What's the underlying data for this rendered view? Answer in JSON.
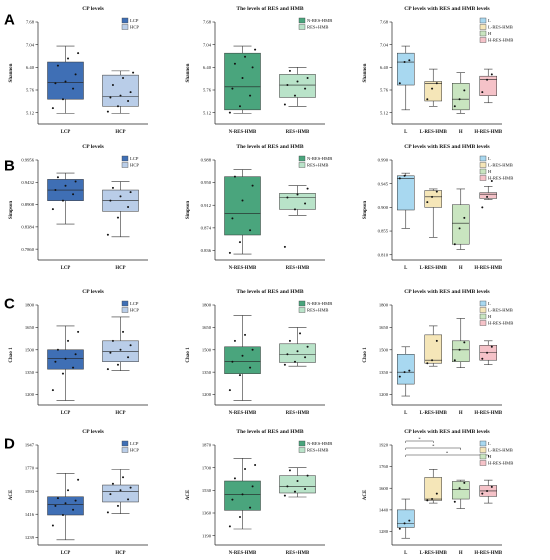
{
  "chart_data": [
    {
      "type": "box",
      "row": "A",
      "title": "CP levels",
      "ylabel": "Shannon",
      "ylim": [
        4.8,
        7.68
      ],
      "yticks": [
        "5.12",
        "5.76",
        "6.40",
        "7.04",
        "7.68"
      ],
      "categories": [
        "LCP",
        "HCP"
      ],
      "legend": [
        {
          "name": "LCP",
          "color": "#3f6fb5"
        },
        {
          "name": "HCP",
          "color": "#b9cde8"
        }
      ],
      "boxes": [
        {
          "name": "LCP",
          "color": "#3f6fb5",
          "min": 5.1,
          "q1": 5.5,
          "median": 5.97,
          "q3": 6.55,
          "max": 7.0,
          "points": [
            5.25,
            5.5,
            5.8,
            5.95,
            6.0,
            6.2,
            6.45,
            6.65,
            6.8
          ]
        },
        {
          "name": "HCP",
          "color": "#b9cde8",
          "min": 5.1,
          "q1": 5.3,
          "median": 5.58,
          "q3": 6.18,
          "max": 6.3,
          "points": [
            5.15,
            5.3,
            5.45,
            5.55,
            5.6,
            5.7,
            5.9,
            6.1,
            6.25
          ]
        }
      ],
      "sig": []
    },
    {
      "type": "box",
      "row": "A",
      "title": "The levels of RES and HMB",
      "ylabel": "Shannon",
      "ylim": [
        4.8,
        7.68
      ],
      "yticks": [
        "5.12",
        "5.76",
        "6.40",
        "7.04",
        "7.68"
      ],
      "categories": [
        "N-RES-HMB",
        "RES+HMB"
      ],
      "legend": [
        {
          "name": "N-RES-HMB",
          "color": "#4aa57d"
        },
        {
          "name": "RES+HMB",
          "color": "#b9e3c9"
        }
      ],
      "boxes": [
        {
          "name": "N-RES-HMB",
          "color": "#4aa57d",
          "min": 5.1,
          "q1": 5.2,
          "median": 5.85,
          "q3": 6.8,
          "max": 7.0,
          "points": [
            5.12,
            5.3,
            5.6,
            5.8,
            6.1,
            6.4,
            6.5,
            6.7,
            6.9
          ]
        },
        {
          "name": "RES+HMB",
          "color": "#b9e3c9",
          "min": 5.3,
          "q1": 5.55,
          "median": 5.9,
          "q3": 6.2,
          "max": 6.4,
          "points": [
            5.35,
            5.6,
            5.8,
            5.9,
            6.0,
            6.1,
            6.3
          ]
        }
      ],
      "sig": []
    },
    {
      "type": "box",
      "row": "A",
      "title": "CP levels with RES and HMB levels",
      "ylabel": "Shannon",
      "ylim": [
        4.8,
        7.68
      ],
      "yticks": [
        "5.12",
        "5.76",
        "6.40",
        "7.04",
        "7.68"
      ],
      "categories": [
        "L",
        "L-RES-HMB",
        "H",
        "H-RES-HMB"
      ],
      "legend": [
        {
          "name": "L",
          "color": "#a8d8f0"
        },
        {
          "name": "L-RES-HMB",
          "color": "#f5e6b8"
        },
        {
          "name": "H",
          "color": "#c9e5c0"
        },
        {
          "name": "H-RES-HMB",
          "color": "#f5c2c8"
        }
      ],
      "boxes": [
        {
          "name": "L",
          "color": "#a8d8f0",
          "min": 5.2,
          "q1": 5.9,
          "median": 6.55,
          "q3": 6.8,
          "max": 7.0,
          "points": [
            5.95,
            6.55,
            6.6
          ]
        },
        {
          "name": "L-RES-HMB",
          "color": "#f5e6b8",
          "min": 5.3,
          "q1": 5.45,
          "median": 5.95,
          "q3": 6.0,
          "max": 6.35,
          "points": [
            5.5,
            5.8,
            5.95
          ]
        },
        {
          "name": "H",
          "color": "#c9e5c0",
          "min": 5.1,
          "q1": 5.2,
          "median": 5.5,
          "q3": 5.95,
          "max": 6.25,
          "points": [
            5.3,
            5.5,
            5.75
          ]
        },
        {
          "name": "H-RES-HMB",
          "color": "#f5c2c8",
          "min": 5.4,
          "q1": 5.6,
          "median": 6.05,
          "q3": 6.15,
          "max": 6.35,
          "points": [
            5.7,
            6.05,
            6.2
          ]
        }
      ],
      "sig": []
    },
    {
      "type": "box",
      "row": "B",
      "title": "CP levels",
      "ylabel": "Simpson",
      "ylim": [
        0.7605,
        0.9956
      ],
      "yticks": [
        "0.7860",
        "0.8384",
        "0.8908",
        "0.9432",
        "0.9956"
      ],
      "categories": [
        "LCP",
        "HCP"
      ],
      "legend": [
        {
          "name": "LCP",
          "color": "#3f6fb5"
        },
        {
          "name": "HCP",
          "color": "#b9cde8"
        }
      ],
      "boxes": [
        {
          "name": "LCP",
          "color": "#3f6fb5",
          "min": 0.845,
          "q1": 0.9,
          "median": 0.925,
          "q3": 0.95,
          "max": 0.965,
          "points": [
            0.88,
            0.9,
            0.915,
            0.925,
            0.935,
            0.945,
            0.955
          ]
        },
        {
          "name": "HCP",
          "color": "#b9cde8",
          "min": 0.815,
          "q1": 0.875,
          "median": 0.9,
          "q3": 0.925,
          "max": 0.945,
          "points": [
            0.82,
            0.86,
            0.885,
            0.9,
            0.91,
            0.92,
            0.93
          ]
        }
      ],
      "sig": []
    },
    {
      "type": "box",
      "row": "B",
      "title": "The levels of RES and HMB",
      "ylabel": "Simpson",
      "ylim": [
        0.82,
        0.988
      ],
      "yticks": [
        "0.836",
        "0.874",
        "0.912",
        "0.950",
        "0.988"
      ],
      "categories": [
        "N-RES-HMB",
        "RES+HMB"
      ],
      "legend": [
        {
          "name": "N-RES-HMB",
          "color": "#4aa57d"
        },
        {
          "name": "RES+HMB",
          "color": "#b9e3c9"
        }
      ],
      "boxes": [
        {
          "name": "N-RES-HMB",
          "color": "#4aa57d",
          "min": 0.83,
          "q1": 0.862,
          "median": 0.898,
          "q3": 0.96,
          "max": 0.972,
          "points": [
            0.832,
            0.85,
            0.87,
            0.89,
            0.92,
            0.945,
            0.96
          ]
        },
        {
          "name": "RES+HMB",
          "color": "#b9e3c9",
          "min": 0.895,
          "q1": 0.905,
          "median": 0.925,
          "q3": 0.932,
          "max": 0.945,
          "points": [
            0.842,
            0.905,
            0.915,
            0.925,
            0.93,
            0.94
          ]
        }
      ],
      "sig": []
    },
    {
      "type": "box",
      "row": "B",
      "title": "CP levels with RES and HMB levels",
      "ylabel": "Simpson",
      "ylim": [
        0.8,
        0.99
      ],
      "yticks": [
        "0.810",
        "0.855",
        "0.900",
        "0.945",
        "0.990"
      ],
      "categories": [
        "L",
        "L-RES-HMB",
        "H",
        "H-RES-HMB"
      ],
      "legend": [
        {
          "name": "L",
          "color": "#a8d8f0"
        },
        {
          "name": "L-RES-HMB",
          "color": "#f5e6b8"
        },
        {
          "name": "H",
          "color": "#c9e5c0"
        },
        {
          "name": "H-RES-HMB",
          "color": "#f5c2c8"
        }
      ],
      "boxes": [
        {
          "name": "L",
          "color": "#a8d8f0",
          "min": 0.86,
          "q1": 0.895,
          "median": 0.955,
          "q3": 0.96,
          "max": 0.965,
          "points": [
            0.955,
            0.96
          ]
        },
        {
          "name": "L-RES-HMB",
          "color": "#f5e6b8",
          "min": 0.843,
          "q1": 0.9,
          "median": 0.92,
          "q3": 0.932,
          "max": 0.935,
          "points": [
            0.91,
            0.92,
            0.93
          ]
        },
        {
          "name": "H",
          "color": "#c9e5c0",
          "min": 0.82,
          "q1": 0.83,
          "median": 0.87,
          "q3": 0.905,
          "max": 0.935,
          "points": [
            0.83,
            0.86,
            0.88
          ]
        },
        {
          "name": "H-RES-HMB",
          "color": "#f5c2c8",
          "min": 0.915,
          "q1": 0.917,
          "median": 0.925,
          "q3": 0.928,
          "max": 0.94,
          "points": [
            0.9,
            0.92,
            0.95
          ]
        }
      ],
      "sig": []
    },
    {
      "type": "box",
      "row": "C",
      "title": "CP levels",
      "ylabel": "Chao 1",
      "ylim": [
        1130,
        1800
      ],
      "yticks": [
        "1200",
        "1350",
        "1500",
        "1650",
        "1800"
      ],
      "categories": [
        "LCP",
        "HCP"
      ],
      "legend": [
        {
          "name": "LCP",
          "color": "#3f6fb5"
        },
        {
          "name": "HCP",
          "color": "#b9cde8"
        }
      ],
      "boxes": [
        {
          "name": "LCP",
          "color": "#3f6fb5",
          "min": 1160,
          "q1": 1370,
          "median": 1440,
          "q3": 1500,
          "max": 1660,
          "points": [
            1230,
            1340,
            1380,
            1420,
            1440,
            1470,
            1500,
            1560,
            1620
          ]
        },
        {
          "name": "HCP",
          "color": "#b9cde8",
          "min": 1360,
          "q1": 1420,
          "median": 1490,
          "q3": 1560,
          "max": 1720,
          "points": [
            1370,
            1400,
            1450,
            1480,
            1500,
            1530,
            1560,
            1620
          ]
        }
      ],
      "sig": []
    },
    {
      "type": "box",
      "row": "C",
      "title": "The levels of RES and HMB",
      "ylabel": "Chao 1",
      "ylim": [
        1130,
        1800
      ],
      "yticks": [
        "1200",
        "1350",
        "1500",
        "1650",
        "1800"
      ],
      "categories": [
        "N-RES-HMB",
        "RES+HMB"
      ],
      "legend": [
        {
          "name": "N-RES-HMB",
          "color": "#4aa57d"
        },
        {
          "name": "RES+HMB",
          "color": "#b9e3c9"
        }
      ],
      "boxes": [
        {
          "name": "N-RES-HMB",
          "color": "#4aa57d",
          "min": 1160,
          "q1": 1340,
          "median": 1420,
          "q3": 1520,
          "max": 1730,
          "points": [
            1230,
            1330,
            1380,
            1420,
            1460,
            1500,
            1560,
            1600
          ]
        },
        {
          "name": "RES+HMB",
          "color": "#b9e3c9",
          "min": 1390,
          "q1": 1415,
          "median": 1470,
          "q3": 1540,
          "max": 1650,
          "points": [
            1400,
            1420,
            1450,
            1470,
            1490,
            1520,
            1560,
            1610
          ]
        }
      ],
      "sig": []
    },
    {
      "type": "box",
      "row": "C",
      "title": "CP levels with RES and HMB levels",
      "ylabel": "Chao 1",
      "ylim": [
        1130,
        1800
      ],
      "yticks": [
        "1200",
        "1350",
        "1500",
        "1650",
        "1800"
      ],
      "categories": [
        "L",
        "L-RES-HMB",
        "H",
        "H-RES-HMB"
      ],
      "legend": [
        {
          "name": "L",
          "color": "#a8d8f0"
        },
        {
          "name": "L-RES-HMB",
          "color": "#f5e6b8"
        },
        {
          "name": "H",
          "color": "#c9e5c0"
        },
        {
          "name": "H-RES-HMB",
          "color": "#f5c2c8"
        }
      ],
      "boxes": [
        {
          "name": "L",
          "color": "#a8d8f0",
          "min": 1190,
          "q1": 1270,
          "median": 1350,
          "q3": 1470,
          "max": 1520,
          "points": [
            1320,
            1350,
            1360
          ]
        },
        {
          "name": "L-RES-HMB",
          "color": "#f5e6b8",
          "min": 1390,
          "q1": 1410,
          "median": 1430,
          "q3": 1600,
          "max": 1660,
          "points": [
            1410,
            1430,
            1560
          ]
        },
        {
          "name": "H",
          "color": "#c9e5c0",
          "min": 1380,
          "q1": 1420,
          "median": 1500,
          "q3": 1560,
          "max": 1710,
          "points": [
            1430,
            1500,
            1550
          ]
        },
        {
          "name": "H-RES-HMB",
          "color": "#f5c2c8",
          "min": 1400,
          "q1": 1430,
          "median": 1480,
          "q3": 1530,
          "max": 1560,
          "points": [
            1440,
            1480,
            1520
          ]
        }
      ],
      "sig": []
    },
    {
      "type": "box",
      "row": "D",
      "title": "CP levels",
      "ylabel": "ACE",
      "ylim": [
        1180,
        1947
      ],
      "yticks": [
        "1239",
        "1416",
        "1593",
        "1770",
        "1947"
      ],
      "categories": [
        "LCP",
        "HCP"
      ],
      "legend": [
        {
          "name": "LCP",
          "color": "#3f6fb5"
        },
        {
          "name": "HCP",
          "color": "#b9cde8"
        }
      ],
      "boxes": [
        {
          "name": "LCP",
          "color": "#3f6fb5",
          "min": 1220,
          "q1": 1410,
          "median": 1490,
          "q3": 1550,
          "max": 1730,
          "points": [
            1330,
            1410,
            1450,
            1480,
            1500,
            1520,
            1540,
            1600,
            1680
          ]
        },
        {
          "name": "HCP",
          "color": "#b9cde8",
          "min": 1420,
          "q1": 1510,
          "median": 1590,
          "q3": 1640,
          "max": 1760,
          "points": [
            1430,
            1480,
            1530,
            1570,
            1600,
            1620,
            1650,
            1700
          ]
        }
      ],
      "sig": []
    },
    {
      "type": "box",
      "row": "D",
      "title": "The levels of RES and HMB",
      "ylabel": "ACE",
      "ylim": [
        1120,
        1870
      ],
      "yticks": [
        "1190",
        "1360",
        "1530",
        "1700",
        "1870"
      ],
      "categories": [
        "N-RES-HMB",
        "RES+HMB"
      ],
      "legend": [
        {
          "name": "N-RES-HMB",
          "color": "#4aa57d"
        },
        {
          "name": "RES+HMB",
          "color": "#b9e3c9"
        }
      ],
      "boxes": [
        {
          "name": "N-RES-HMB",
          "color": "#4aa57d",
          "min": 1240,
          "q1": 1380,
          "median": 1500,
          "q3": 1600,
          "max": 1770,
          "points": [
            1260,
            1330,
            1400,
            1460,
            1500,
            1560,
            1620,
            1690,
            1720
          ]
        },
        {
          "name": "RES+HMB",
          "color": "#b9e3c9",
          "min": 1480,
          "q1": 1510,
          "median": 1560,
          "q3": 1640,
          "max": 1700,
          "points": [
            1490,
            1520,
            1540,
            1560,
            1600,
            1640,
            1680
          ]
        }
      ],
      "sig": []
    },
    {
      "type": "box",
      "row": "D",
      "title": "CP levels with RES and HMB levels",
      "ylabel": "ACE",
      "ylim": [
        1180,
        1920
      ],
      "yticks": [
        "1280",
        "1440",
        "1600",
        "1760",
        "1920"
      ],
      "categories": [
        "L",
        "L-RES-HMB",
        "H",
        "H-RES-HMB"
      ],
      "legend": [
        {
          "name": "L",
          "color": "#a8d8f0"
        },
        {
          "name": "L-RES-HMB",
          "color": "#f5e6b8"
        },
        {
          "name": "H",
          "color": "#c9e5c0"
        },
        {
          "name": "H-RES-HMB",
          "color": "#f5c2c8"
        }
      ],
      "boxes": [
        {
          "name": "L",
          "color": "#a8d8f0",
          "min": 1230,
          "q1": 1310,
          "median": 1340,
          "q3": 1440,
          "max": 1520,
          "points": [
            1300,
            1340,
            1360
          ]
        },
        {
          "name": "L-RES-HMB",
          "color": "#f5e6b8",
          "min": 1490,
          "q1": 1510,
          "median": 1520,
          "q3": 1680,
          "max": 1740,
          "points": [
            1510,
            1520,
            1560
          ]
        },
        {
          "name": "H",
          "color": "#c9e5c0",
          "min": 1450,
          "q1": 1520,
          "median": 1590,
          "q3": 1650,
          "max": 1660,
          "points": [
            1500,
            1600,
            1640
          ]
        },
        {
          "name": "H-RES-HMB",
          "color": "#f5c2c8",
          "min": 1490,
          "q1": 1540,
          "median": 1580,
          "q3": 1620,
          "max": 1660,
          "points": [
            1560,
            1580,
            1610
          ]
        }
      ],
      "sig": [
        {
          "from": 0,
          "to": 1,
          "label": "*"
        },
        {
          "from": 0,
          "to": 2,
          "label": "*"
        },
        {
          "from": 0,
          "to": 3,
          "label": "*"
        }
      ]
    }
  ],
  "row_labels": [
    "A",
    "B",
    "C",
    "D"
  ]
}
